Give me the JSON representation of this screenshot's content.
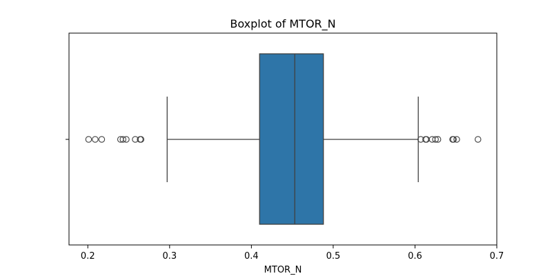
{
  "chart_data": {
    "type": "boxplot",
    "title": "Boxplot of MTOR_N",
    "xlabel": "MTOR_N",
    "ylabel": "",
    "xlim": [
      0.177,
      0.7
    ],
    "xticks": [
      0.2,
      0.3,
      0.4,
      0.5,
      0.6,
      0.7
    ],
    "xtick_labels": [
      "0.2",
      "0.3",
      "0.4",
      "0.5",
      "0.6",
      "0.7"
    ],
    "grid": false,
    "box": {
      "whisker_low": 0.297,
      "q1": 0.41,
      "median": 0.453,
      "q3": 0.488,
      "whisker_high": 0.604
    },
    "outliers": [
      0.201,
      0.209,
      0.217,
      0.24,
      0.243,
      0.247,
      0.258,
      0.264,
      0.265,
      0.607,
      0.613,
      0.614,
      0.621,
      0.625,
      0.628,
      0.646,
      0.647,
      0.651,
      0.677
    ],
    "colors": {
      "box_fill": "#2e75a8",
      "lines": "#3f3f3f",
      "axes": "#000000"
    }
  }
}
